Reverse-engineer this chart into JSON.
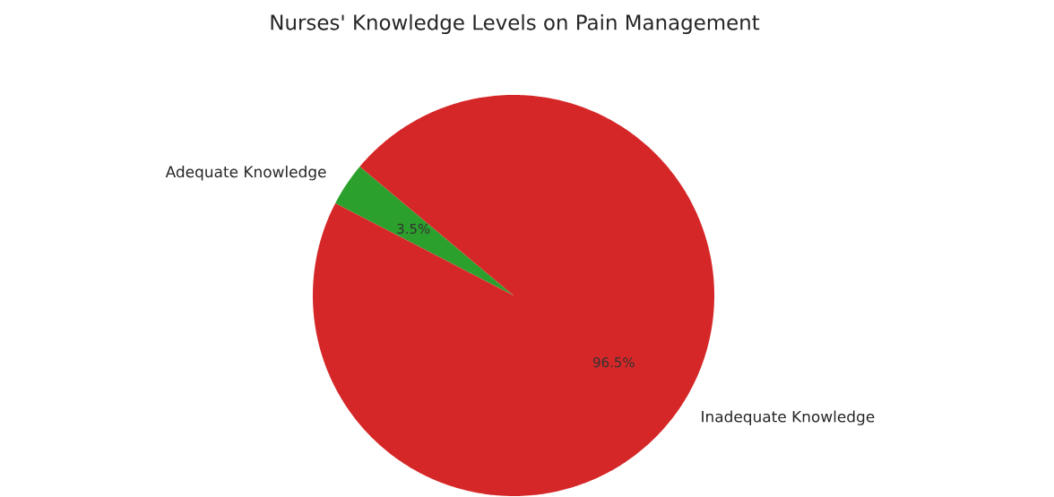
{
  "chart_data": {
    "type": "pie",
    "title": "Nurses' Knowledge Levels on Pain Management",
    "categories": [
      "Adequate Knowledge",
      "Inadequate Knowledge"
    ],
    "values": [
      3.5,
      96.5
    ],
    "colors": [
      "#2ca02c",
      "#d62728"
    ],
    "value_labels": [
      "3.5%",
      "96.5%"
    ]
  }
}
